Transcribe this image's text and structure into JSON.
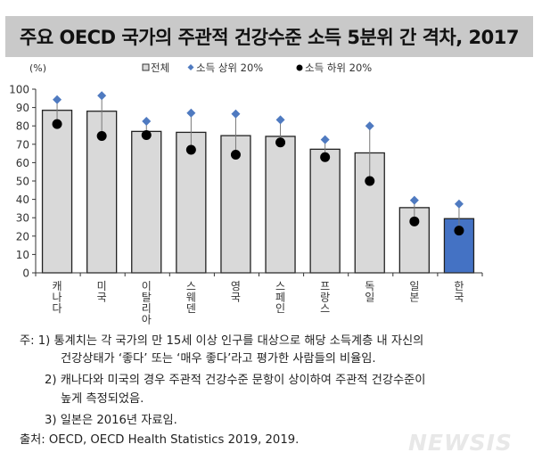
{
  "title": "주요 OECD 국가의 주관적 건강수준 소득 5분위 간 격차, 2017",
  "chart_data": {
    "type": "bar",
    "title": "주요 OECD 국가의 주관적 건강수준 소득 5분위 간 격차, 2017",
    "ylabel": "(%)",
    "ylim": [
      0,
      100
    ],
    "yticks": [
      0,
      10,
      20,
      30,
      40,
      50,
      60,
      70,
      80,
      90,
      100
    ],
    "grid": false,
    "legend_placement": "top",
    "categories": [
      "캐나다",
      "미국",
      "이탈리아",
      "스웨덴",
      "영국",
      "스페인",
      "프랑스",
      "독일",
      "일본",
      "한국"
    ],
    "series": [
      {
        "name": "전체",
        "type": "bar",
        "values": [
          88.5,
          88,
          77,
          76.5,
          74.7,
          74.3,
          67.3,
          65.3,
          35.5,
          29.5
        ],
        "color": "#d9d9d9",
        "highlight_color": "#4472c4",
        "highlight_index": 9
      },
      {
        "name": "소득 상위 20%",
        "type": "marker-diamond",
        "values": [
          94.3,
          96.5,
          82.5,
          87,
          86.5,
          83.3,
          72.5,
          80,
          39.5,
          37.5
        ],
        "color": "#4f7ac0"
      },
      {
        "name": "소득 하위 20%",
        "type": "marker-circle",
        "values": [
          81,
          74.5,
          75,
          67,
          64.3,
          71,
          63,
          50,
          28,
          23
        ],
        "color": "#000000"
      }
    ]
  },
  "notes": {
    "line1": "주: 1) 통계치는 각 국가의 만 15세 이상 인구를 대상으로 해당 소득계층 내 자신의",
    "line2": "건강상태가 ‘좋다’ 또는 ‘매우 좋다’라고 평가한 사람들의 비율임.",
    "line3": "2) 캐나다와 미국의 경우 주관적 건강수준 문항이 상이하여 주관적 건강수준이",
    "line4": "높게 측정되었음.",
    "line5": "3) 일본은 2016년 자료임.",
    "source": "출처: OECD, OECD Health Statistics 2019, 2019."
  },
  "watermark": "NEWSIS"
}
